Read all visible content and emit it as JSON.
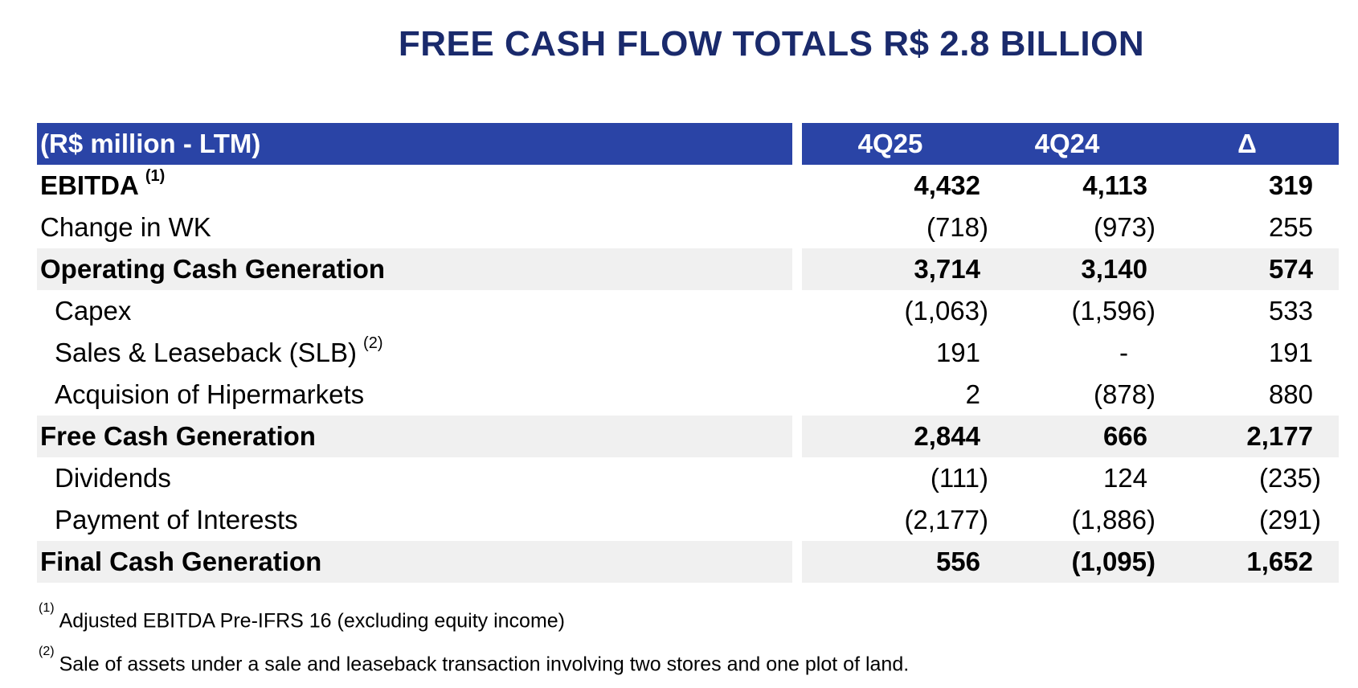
{
  "title": "FREE CASH FLOW TOTALS R$ 2.8 BILLION",
  "header": {
    "label": "(R$ million - LTM)",
    "col1": "4Q25",
    "col2": "4Q24",
    "col3": "Δ"
  },
  "rows": [
    {
      "label": "EBITDA",
      "ref": "(1)",
      "v1": "4,432",
      "v2": "4,113",
      "v3": "319"
    },
    {
      "label": "Change in WK",
      "ref": "",
      "v1": "(718)",
      "v2": "(973)",
      "v3": "255"
    },
    {
      "label": "Operating Cash Generation",
      "ref": "",
      "v1": "3,714",
      "v2": "3,140",
      "v3": "574"
    },
    {
      "label": "Capex",
      "ref": "",
      "v1": "(1,063)",
      "v2": "(1,596)",
      "v3": "533"
    },
    {
      "label": "Sales & Leaseback (SLB)",
      "ref": "(2)",
      "v1": "191",
      "v2": "-",
      "v3": "191"
    },
    {
      "label": "Acquision of Hipermarkets",
      "ref": "",
      "v1": "2",
      "v2": "(878)",
      "v3": "880"
    },
    {
      "label": "Free Cash Generation",
      "ref": "",
      "v1": "2,844",
      "v2": "666",
      "v3": "2,177"
    },
    {
      "label": "Dividends",
      "ref": "",
      "v1": "(111)",
      "v2": "124",
      "v3": "(235)"
    },
    {
      "label": "Payment of Interests",
      "ref": "",
      "v1": "(2,177)",
      "v2": "(1,886)",
      "v3": "(291)"
    },
    {
      "label": "Final Cash Generation",
      "ref": "",
      "v1": "556",
      "v2": "(1,095)",
      "v3": "1,652"
    }
  ],
  "footnotes": [
    {
      "ref": "(1)",
      "text": "Adjusted EBITDA Pre-IFRS 16 (excluding equity income)"
    },
    {
      "ref": "(2)",
      "text": "Sale of assets under a sale and leaseback transaction involving two stores and one plot of land."
    }
  ],
  "colors": {
    "title": "#1a2a6c",
    "header_bg": "#2a44a6",
    "shaded_row": "#f0f0f0"
  }
}
